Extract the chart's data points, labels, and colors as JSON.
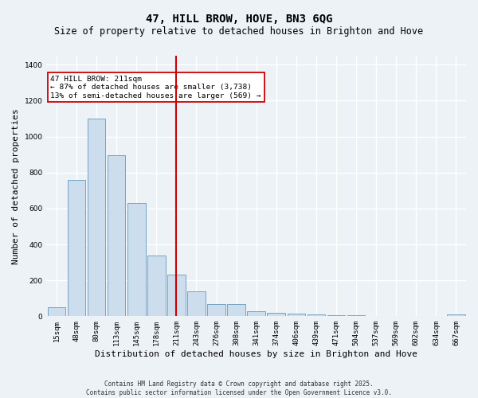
{
  "title": "47, HILL BROW, HOVE, BN3 6QG",
  "subtitle": "Size of property relative to detached houses in Brighton and Hove",
  "xlabel": "Distribution of detached houses by size in Brighton and Hove",
  "ylabel": "Number of detached properties",
  "categories": [
    "15sqm",
    "48sqm",
    "80sqm",
    "113sqm",
    "145sqm",
    "178sqm",
    "211sqm",
    "243sqm",
    "276sqm",
    "308sqm",
    "341sqm",
    "374sqm",
    "406sqm",
    "439sqm",
    "471sqm",
    "504sqm",
    "537sqm",
    "569sqm",
    "602sqm",
    "634sqm",
    "667sqm"
  ],
  "values": [
    50,
    760,
    1100,
    895,
    630,
    340,
    230,
    140,
    70,
    70,
    30,
    20,
    15,
    10,
    5,
    5,
    2,
    2,
    0,
    2,
    10
  ],
  "bar_color": "#ccdded",
  "bar_edge_color": "#6699bb",
  "highlight_index": 6,
  "highlight_color": "#cc0000",
  "annotation_text": "47 HILL BROW: 211sqm\n← 87% of detached houses are smaller (3,738)\n13% of semi-detached houses are larger (569) →",
  "annotation_box_color": "#ffffff",
  "annotation_box_edge": "#cc0000",
  "ylim": [
    0,
    1450
  ],
  "yticks": [
    0,
    200,
    400,
    600,
    800,
    1000,
    1200,
    1400
  ],
  "footer": "Contains HM Land Registry data © Crown copyright and database right 2025.\nContains public sector information licensed under the Open Government Licence v3.0.",
  "bg_color": "#edf2f7",
  "grid_color": "#ffffff",
  "title_fontsize": 10,
  "subtitle_fontsize": 8.5,
  "label_fontsize": 8,
  "tick_fontsize": 6.5,
  "footer_fontsize": 5.5
}
